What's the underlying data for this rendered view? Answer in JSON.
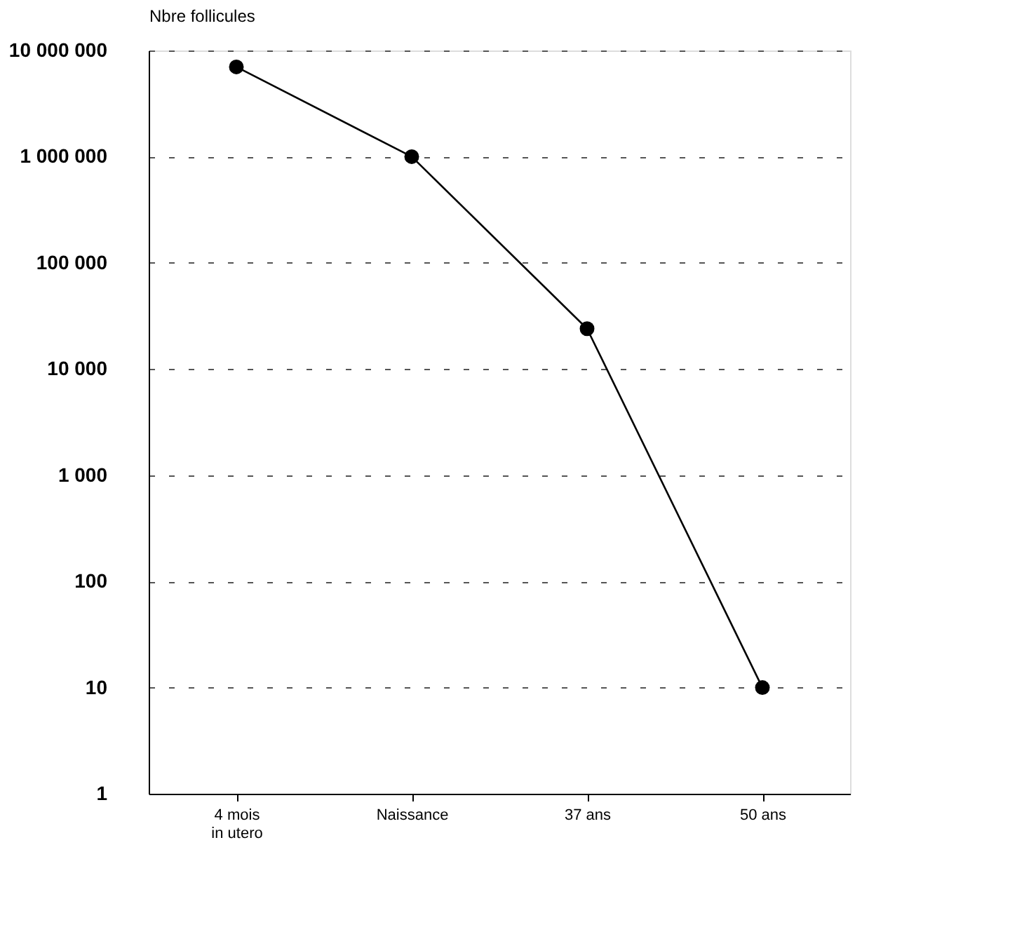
{
  "chart_data": {
    "type": "line",
    "ylabel": "Nbre follicules",
    "categories": [
      "4 mois\nin utero",
      "Naissance",
      "37 ans",
      "50 ans"
    ],
    "series": [
      {
        "color": "#000000",
        "values": [
          7000000,
          1000000,
          24000,
          10
        ]
      }
    ],
    "log": "y",
    "ylim": [
      1,
      10000000
    ],
    "yticks": [
      1,
      10,
      100,
      {
        "value": 1000,
        "label": "1 000"
      },
      {
        "value": 10000,
        "label": "10 000"
      },
      {
        "value": 100000,
        "label": "100 000"
      },
      {
        "value": 1000000,
        "label": "1 000 000"
      },
      {
        "value": 10000000,
        "label": "10 000 000"
      }
    ],
    "grid": "y",
    "marker": "circle",
    "line_style": "solid"
  }
}
